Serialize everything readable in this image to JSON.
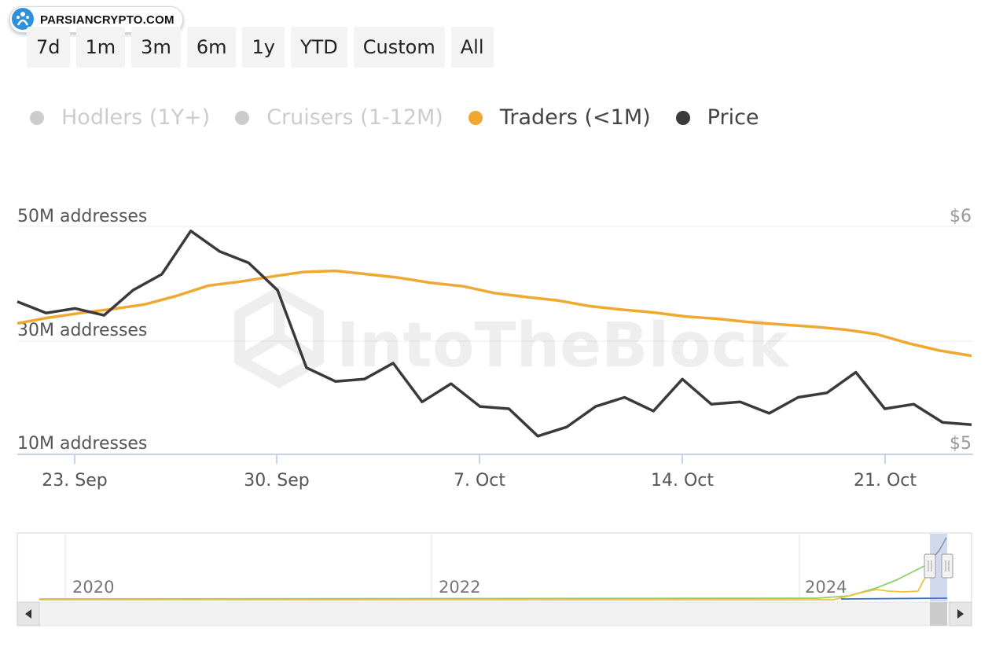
{
  "brand": {
    "logo_text": "PARSIANCRYPTO.COM",
    "watermark": "IntoTheBlock"
  },
  "range_selector": [
    {
      "label": "7d"
    },
    {
      "label": "1m"
    },
    {
      "label": "3m"
    },
    {
      "label": "6m"
    },
    {
      "label": "1y"
    },
    {
      "label": "YTD"
    },
    {
      "label": "Custom"
    },
    {
      "label": "All"
    }
  ],
  "legend": [
    {
      "label": "Hodlers (1Y+)",
      "color": "#cccccc",
      "visible": false
    },
    {
      "label": "Cruisers (1-12M)",
      "color": "#cccccc",
      "visible": false
    },
    {
      "label": "Traders (<1M)",
      "color": "#f0a830",
      "visible": true
    },
    {
      "label": "Price",
      "color": "#3a3a3c",
      "visible": true
    }
  ],
  "chart_data": {
    "type": "line",
    "x_tick_labels": [
      "23. Sep",
      "30. Sep",
      "7. Oct",
      "14. Oct",
      "21. Oct"
    ],
    "x_start": "2024-09-22",
    "left_axis": {
      "tick_labels": [
        "10M addresses",
        "30M addresses",
        "50M addresses"
      ],
      "range": [
        10000000,
        50000000
      ]
    },
    "right_axis": {
      "tick_labels": [
        "$5",
        "$6"
      ],
      "range": [
        5,
        6
      ]
    },
    "grid": true,
    "series": [
      {
        "name": "Traders (<1M)",
        "axis": "left",
        "color": "#f0a830",
        "values": [
          33.0,
          34.0,
          34.8,
          35.5,
          36.3,
          37.8,
          39.6,
          40.3,
          41.2,
          42.0,
          42.2,
          41.6,
          41.0,
          40.1,
          39.5,
          38.3,
          37.6,
          37.0,
          36.0,
          35.4,
          34.9,
          34.2,
          33.8,
          33.2,
          32.8,
          32.4,
          31.9,
          31.1,
          29.5,
          28.2,
          27.3
        ]
      },
      {
        "name": "Price",
        "axis": "right",
        "color": "#3a3a3c",
        "values": [
          5.67,
          5.62,
          5.64,
          5.61,
          5.72,
          5.79,
          5.98,
          5.89,
          5.84,
          5.72,
          5.38,
          5.32,
          5.33,
          5.4,
          5.23,
          5.31,
          5.21,
          5.2,
          5.08,
          5.12,
          5.21,
          5.25,
          5.19,
          5.33,
          5.22,
          5.23,
          5.18,
          5.25,
          5.27,
          5.36,
          5.2,
          5.22,
          5.14,
          5.13
        ]
      }
    ]
  },
  "navigator": {
    "year_labels": [
      "2020",
      "2022",
      "2024"
    ],
    "scroll_left_icon": "arrow-left-icon",
    "scroll_right_icon": "arrow-right-icon"
  }
}
